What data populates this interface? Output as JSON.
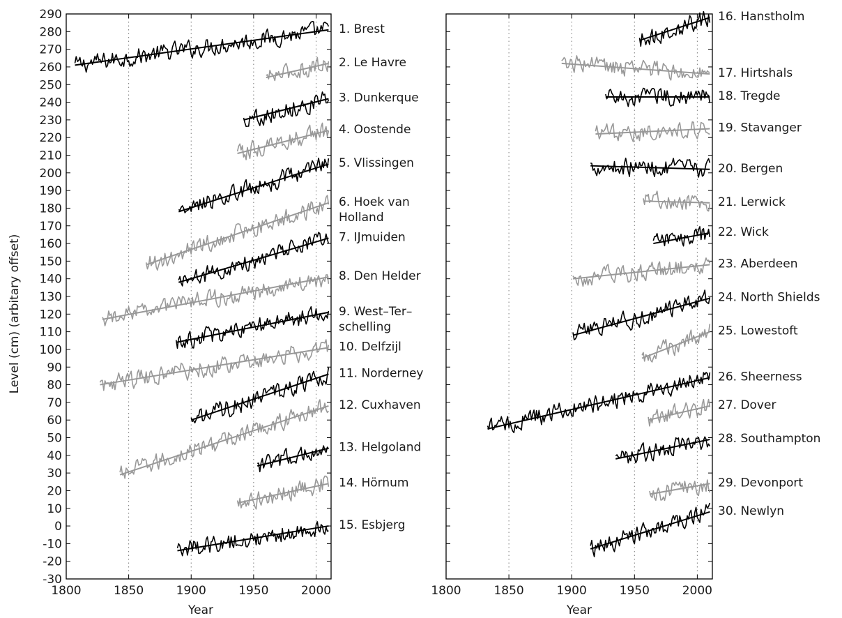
{
  "chart_data": [
    {
      "type": "line",
      "xlabel": "Year",
      "ylabel": "Level (cm) (arbitary offset)",
      "xlim": [
        1800,
        2012
      ],
      "ylim": [
        -30,
        290
      ],
      "xticks": [
        1800,
        1850,
        1900,
        1950,
        2000
      ],
      "yticks": [
        -30,
        -20,
        -10,
        0,
        10,
        20,
        30,
        40,
        50,
        60,
        70,
        80,
        90,
        100,
        110,
        120,
        130,
        140,
        150,
        160,
        170,
        180,
        190,
        200,
        210,
        220,
        230,
        240,
        250,
        260,
        270,
        280,
        290
      ],
      "grid": "vertical dotted lines at 1850, 1900, 1950, 2000",
      "series": [
        {
          "name": "1. Brest",
          "color": "#000000",
          "label_lines": [
            "1. Brest"
          ],
          "start": 1807,
          "end": 2010,
          "trend": [
            [
              1807,
              261
            ],
            [
              2010,
              281
            ]
          ]
        },
        {
          "name": "2. Le Havre",
          "color": "#999999",
          "label_lines": [
            "2. Le Havre"
          ],
          "start": 1960,
          "end": 2010,
          "trend": [
            [
              1960,
              254
            ],
            [
              2010,
              262
            ]
          ]
        },
        {
          "name": "3. Dunkerque",
          "color": "#000000",
          "label_lines": [
            "3. Dunkerque"
          ],
          "start": 1942,
          "end": 2010,
          "trend": [
            [
              1942,
              230
            ],
            [
              2010,
              242
            ]
          ]
        },
        {
          "name": "4. Oostende",
          "color": "#999999",
          "label_lines": [
            "4. Oostende"
          ],
          "start": 1937,
          "end": 2010,
          "trend": [
            [
              1937,
              211
            ],
            [
              2010,
              224
            ]
          ]
        },
        {
          "name": "5. Vlissingen",
          "color": "#000000",
          "label_lines": [
            "5. Vlissingen"
          ],
          "start": 1890,
          "end": 2010,
          "trend": [
            [
              1890,
              178
            ],
            [
              2010,
              205
            ]
          ]
        },
        {
          "name": "6. Hoek van Holland",
          "color": "#999999",
          "label_lines": [
            "6. Hoek van",
            "Holland"
          ],
          "start": 1864,
          "end": 2010,
          "trend": [
            [
              1864,
              148
            ],
            [
              2010,
              183
            ]
          ]
        },
        {
          "name": "7. IJmuiden",
          "color": "#000000",
          "label_lines": [
            "7. IJmuiden"
          ],
          "start": 1890,
          "end": 2010,
          "trend": [
            [
              1890,
              138
            ],
            [
              2010,
              163
            ]
          ]
        },
        {
          "name": "8. Den Helder",
          "color": "#999999",
          "label_lines": [
            "8. Den Helder"
          ],
          "start": 1829,
          "end": 2010,
          "trend": [
            [
              1829,
              117
            ],
            [
              2010,
              141
            ]
          ]
        },
        {
          "name": "9. West-Terschelling",
          "color": "#000000",
          "label_lines": [
            "9. West–Ter–",
            "schelling"
          ],
          "start": 1888,
          "end": 2010,
          "trend": [
            [
              1888,
              104
            ],
            [
              2010,
              121
            ]
          ]
        },
        {
          "name": "10. Delfzijl",
          "color": "#999999",
          "label_lines": [
            "10. Delfzijl"
          ],
          "start": 1827,
          "end": 2010,
          "trend": [
            [
              1827,
              80
            ],
            [
              2010,
              101
            ]
          ]
        },
        {
          "name": "11. Norderney",
          "color": "#000000",
          "label_lines": [
            "11. Norderney"
          ],
          "start": 1900,
          "end": 2010,
          "trend": [
            [
              1900,
              60
            ],
            [
              2010,
              86
            ]
          ]
        },
        {
          "name": "12. Cuxhaven",
          "color": "#999999",
          "label_lines": [
            "12. Cuxhaven"
          ],
          "start": 1843,
          "end": 2010,
          "trend": [
            [
              1843,
              29
            ],
            [
              2010,
              68
            ]
          ]
        },
        {
          "name": "13. Helgoland",
          "color": "#000000",
          "label_lines": [
            "13. Helgoland"
          ],
          "start": 1953,
          "end": 2010,
          "trend": [
            [
              1953,
              34
            ],
            [
              2010,
              44
            ]
          ]
        },
        {
          "name": "14. Hörnum",
          "color": "#999999",
          "label_lines": [
            "14. Hörnum"
          ],
          "start": 1937,
          "end": 2010,
          "trend": [
            [
              1937,
              13
            ],
            [
              2010,
              24
            ]
          ]
        },
        {
          "name": "15. Esbjerg",
          "color": "#000000",
          "label_lines": [
            "15. Esbjerg"
          ],
          "start": 1889,
          "end": 2010,
          "trend": [
            [
              1889,
              -14
            ],
            [
              2010,
              0
            ]
          ]
        }
      ]
    },
    {
      "type": "line",
      "xlabel": "Year",
      "ylabel": "",
      "xlim": [
        1800,
        2012
      ],
      "xticks": [
        1800,
        1850,
        1900,
        1950,
        2000
      ],
      "grid": "vertical dotted lines at 1850, 1900, 1950, 2000",
      "series": [
        {
          "name": "16. Hanstholm",
          "color": "#000000",
          "label_lines": [
            "16. Hanstholm"
          ],
          "start": 1954,
          "end": 2010,
          "trend": [
            [
              1954,
              275
            ],
            [
              2010,
              288
            ]
          ]
        },
        {
          "name": "17. Hirtshals",
          "color": "#999999",
          "label_lines": [
            "17. Hirtshals"
          ],
          "start": 1892,
          "end": 2010,
          "trend": [
            [
              1892,
              262
            ],
            [
              2010,
              256
            ]
          ]
        },
        {
          "name": "18. Tregde",
          "color": "#000000",
          "label_lines": [
            "18. Tregde"
          ],
          "start": 1927,
          "end": 2010,
          "trend": [
            [
              1927,
              243
            ],
            [
              2010,
              243
            ]
          ]
        },
        {
          "name": "19. Stavanger",
          "color": "#999999",
          "label_lines": [
            "19. Stavanger"
          ],
          "start": 1919,
          "end": 2010,
          "trend": [
            [
              1919,
              222
            ],
            [
              2010,
              225
            ]
          ]
        },
        {
          "name": "20. Bergen",
          "color": "#000000",
          "label_lines": [
            "20. Bergen"
          ],
          "start": 1915,
          "end": 2010,
          "trend": [
            [
              1915,
              204
            ],
            [
              2010,
              202
            ]
          ]
        },
        {
          "name": "21. Lerwick",
          "color": "#999999",
          "label_lines": [
            "21. Lerwick"
          ],
          "start": 1957,
          "end": 2010,
          "trend": [
            [
              1957,
              184
            ],
            [
              2010,
              183
            ]
          ]
        },
        {
          "name": "22. Wick",
          "color": "#000000",
          "label_lines": [
            "22. Wick"
          ],
          "start": 1965,
          "end": 2010,
          "trend": [
            [
              1965,
              160
            ],
            [
              2010,
              166
            ]
          ]
        },
        {
          "name": "23. Aberdeen",
          "color": "#999999",
          "label_lines": [
            "23. Aberdeen"
          ],
          "start": 1901,
          "end": 2010,
          "trend": [
            [
              1901,
              140
            ],
            [
              2010,
              148
            ]
          ]
        },
        {
          "name": "24. North Shields",
          "color": "#000000",
          "label_lines": [
            "24. North Shields"
          ],
          "start": 1901,
          "end": 2010,
          "trend": [
            [
              1901,
              108
            ],
            [
              2010,
              129
            ]
          ]
        },
        {
          "name": "25. Lowestoft",
          "color": "#999999",
          "label_lines": [
            "25. Lowestoft"
          ],
          "start": 1956,
          "end": 2010,
          "trend": [
            [
              1956,
              95
            ],
            [
              2010,
              110
            ]
          ]
        },
        {
          "name": "26. Sheerness",
          "color": "#000000",
          "label_lines": [
            "26. Sheerness"
          ],
          "start": 1833,
          "end": 2010,
          "trend": [
            [
              1833,
              55
            ],
            [
              2010,
              84
            ]
          ]
        },
        {
          "name": "27. Dover",
          "color": "#999999",
          "label_lines": [
            "27. Dover"
          ],
          "start": 1961,
          "end": 2010,
          "trend": [
            [
              1961,
              60
            ],
            [
              2010,
              68
            ]
          ]
        },
        {
          "name": "28. Southampton",
          "color": "#000000",
          "label_lines": [
            "28. Southampton"
          ],
          "start": 1935,
          "end": 2010,
          "trend": [
            [
              1935,
              38
            ],
            [
              2010,
              49
            ]
          ]
        },
        {
          "name": "29. Devonport",
          "color": "#999999",
          "label_lines": [
            "29. Devonport"
          ],
          "start": 1962,
          "end": 2010,
          "trend": [
            [
              1962,
              18
            ],
            [
              2010,
              24
            ]
          ]
        },
        {
          "name": "30. Newlyn",
          "color": "#000000",
          "label_lines": [
            "30. Newlyn"
          ],
          "start": 1915,
          "end": 2010,
          "trend": [
            [
              1915,
              -13
            ],
            [
              2010,
              8
            ]
          ]
        }
      ]
    }
  ]
}
